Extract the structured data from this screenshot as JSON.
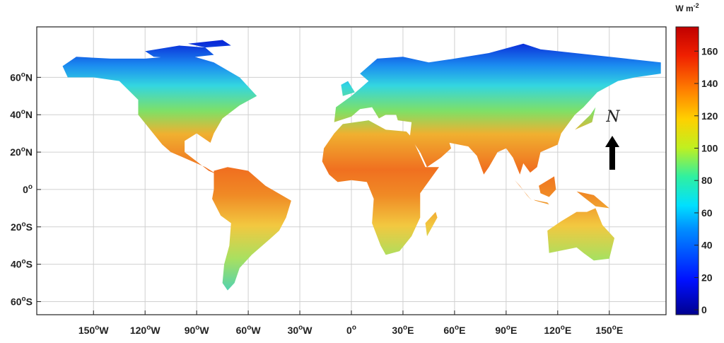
{
  "map": {
    "xlim": [
      -183,
      183
    ],
    "ylim": [
      -67,
      87
    ],
    "lon_ticks": [
      {
        "value": -150,
        "number": "150",
        "sup": "o",
        "hem": "W"
      },
      {
        "value": -120,
        "number": "120",
        "sup": "o",
        "hem": "W"
      },
      {
        "value": -90,
        "number": "90",
        "sup": "o",
        "hem": "W"
      },
      {
        "value": -60,
        "number": "60",
        "sup": "o",
        "hem": "W"
      },
      {
        "value": -30,
        "number": "30",
        "sup": "o",
        "hem": "W"
      },
      {
        "value": 0,
        "number": "0",
        "sup": "o"
      },
      {
        "value": 30,
        "number": "30",
        "sup": "o",
        "hem": "E"
      },
      {
        "value": 60,
        "number": "60",
        "sup": "o",
        "hem": "E"
      },
      {
        "value": 90,
        "number": "90",
        "sup": "o",
        "hem": "E"
      },
      {
        "value": 120,
        "number": "120",
        "sup": "o",
        "hem": "E"
      },
      {
        "value": 150,
        "number": "150",
        "sup": "o",
        "hem": "E"
      }
    ],
    "lat_ticks": [
      {
        "value": 60,
        "number": "60",
        "sup": "o",
        "hem": "N"
      },
      {
        "value": 40,
        "number": "40",
        "sup": "o",
        "hem": "N"
      },
      {
        "value": 20,
        "number": "20",
        "sup": "o",
        "hem": "N"
      },
      {
        "value": 0,
        "number": "0",
        "sup": "o"
      },
      {
        "value": -20,
        "number": "20",
        "sup": "o",
        "hem": "S"
      },
      {
        "value": -40,
        "number": "40",
        "sup": "o",
        "hem": "S"
      },
      {
        "value": -60,
        "number": "60",
        "sup": "o",
        "hem": "S"
      }
    ],
    "north_label": "N"
  },
  "colorbar": {
    "title": "W m",
    "title_sup": "-2",
    "lim": [
      -3,
      175
    ],
    "ticks": [
      0,
      20,
      40,
      60,
      80,
      100,
      120,
      140,
      160
    ]
  }
}
